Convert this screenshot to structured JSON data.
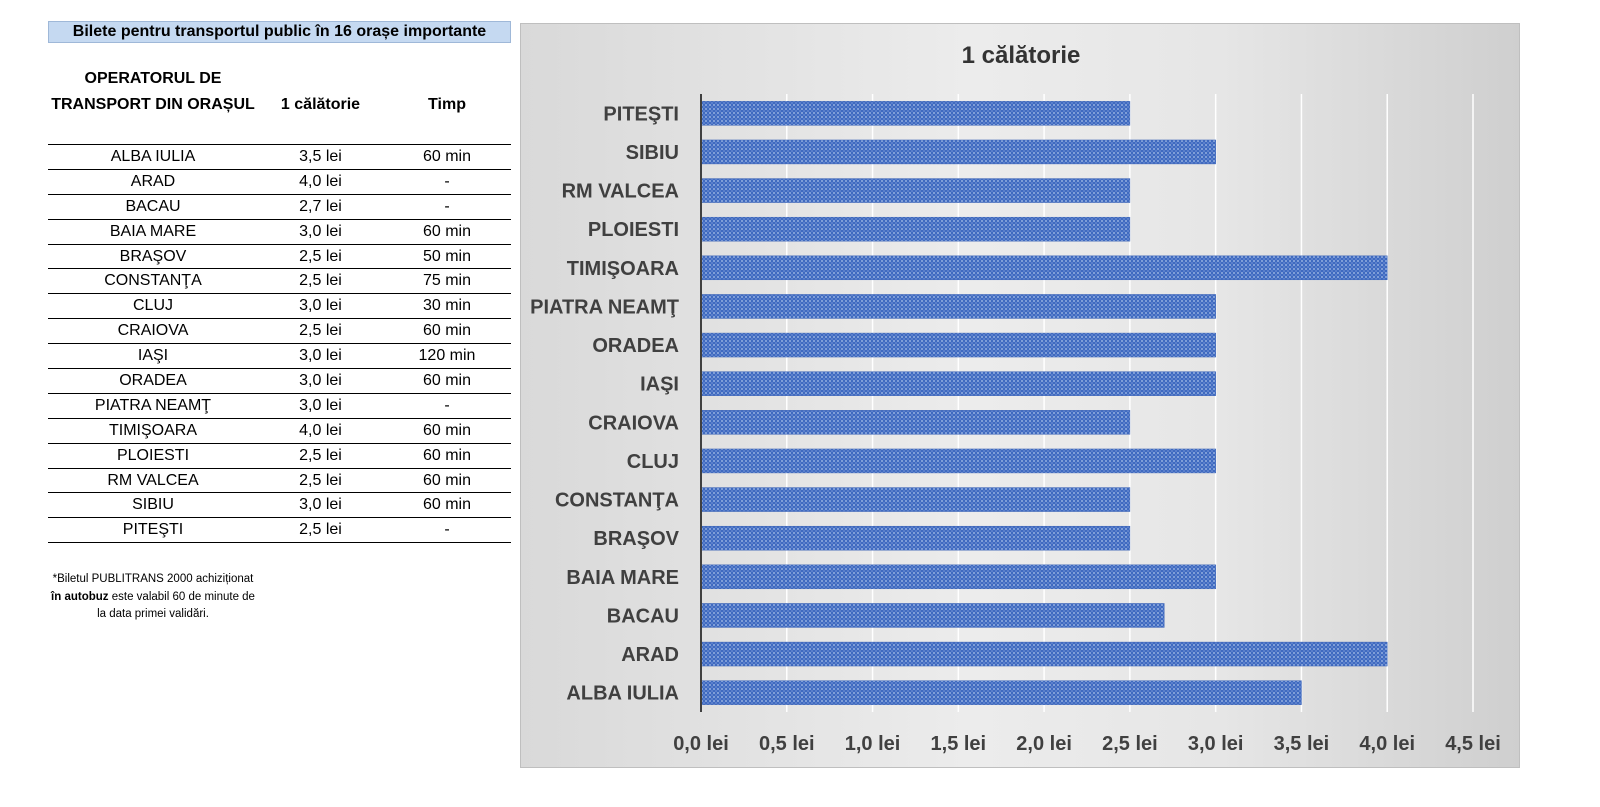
{
  "table": {
    "title": "Bilete pentru transportul public în 16 orașe importante",
    "headers": [
      "OPERATORUL DE TRANSPORT DIN ORAȘUL",
      "1 călătorie",
      "Timp"
    ],
    "rows": [
      [
        "ALBA IULIA",
        "3,5 lei",
        "60 min"
      ],
      [
        "ARAD",
        "4,0 lei",
        "-"
      ],
      [
        "BACAU",
        "2,7 lei",
        "-"
      ],
      [
        "BAIA MARE",
        "3,0 lei",
        "60 min"
      ],
      [
        "BRAŞOV",
        "2,5 lei",
        "50 min"
      ],
      [
        "CONSTANŢA",
        "2,5 lei",
        "75 min"
      ],
      [
        "CLUJ",
        "3,0 lei",
        "30 min"
      ],
      [
        "CRAIOVA",
        "2,5 lei",
        "60 min"
      ],
      [
        "IAŞI",
        "3,0 lei",
        "120 min"
      ],
      [
        "ORADEA",
        "3,0 lei",
        "60 min"
      ],
      [
        "PIATRA NEAMŢ",
        "3,0 lei",
        "-"
      ],
      [
        "TIMIŞOARA",
        "4,0 lei",
        "60 min"
      ],
      [
        "PLOIESTI",
        "2,5 lei",
        "60 min"
      ],
      [
        "RM VALCEA",
        "2,5 lei",
        "60 min"
      ],
      [
        "SIBIU",
        "3,0 lei",
        "60 min"
      ],
      [
        "PITEŞTI",
        "2,5 lei",
        "-"
      ]
    ],
    "note_prefix": "*Biletul PUBLITRANS 2000 achiziționat ",
    "note_bold": "în autobuz",
    "note_suffix": " este valabil 60 de minute de la data primei validări."
  },
  "chart_data": {
    "type": "bar",
    "orientation": "horizontal",
    "title": "1 călătorie",
    "categories": [
      "PITEŞTI",
      "SIBIU",
      "RM VALCEA",
      "PLOIESTI",
      "TIMIŞOARA",
      "PIATRA NEAMŢ",
      "ORADEA",
      "IAŞI",
      "CRAIOVA",
      "CLUJ",
      "CONSTANŢA",
      "BRAŞOV",
      "BAIA MARE",
      "BACAU",
      "ARAD",
      "ALBA IULIA"
    ],
    "values": [
      2.5,
      3.0,
      2.5,
      2.5,
      4.0,
      3.0,
      3.0,
      3.0,
      2.5,
      3.0,
      2.5,
      2.5,
      3.0,
      2.7,
      4.0,
      3.5
    ],
    "xlim": [
      0,
      4.5
    ],
    "tick_labels": [
      "0,0 lei",
      "0,5 lei",
      "1,0 lei",
      "1,5 lei",
      "2,0 lei",
      "2,5 lei",
      "3,0 lei",
      "3,5 lei",
      "4,0 lei",
      "4,5 lei"
    ],
    "grid": true,
    "bar_color": "#4472c4"
  }
}
